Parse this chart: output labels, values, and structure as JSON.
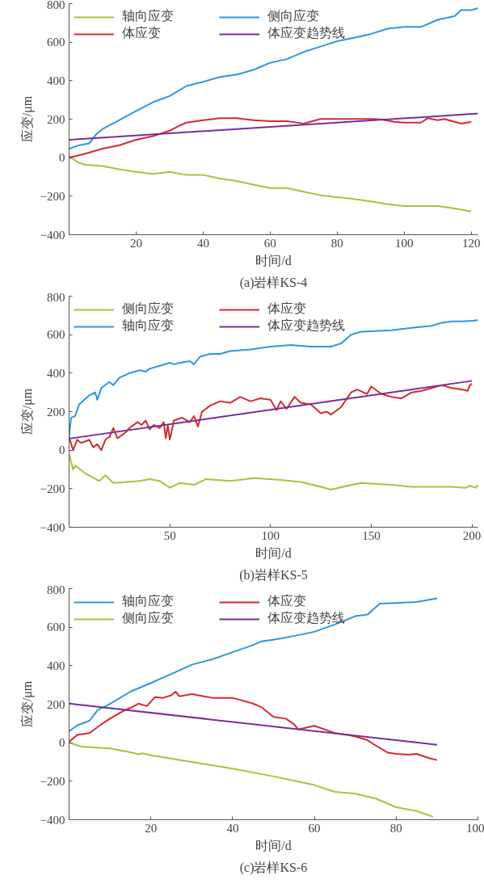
{
  "chart_data": [
    {
      "type": "line",
      "title": "(a)岩样KS-4",
      "xlabel": "时间/d",
      "ylabel": "应变/μm",
      "xlim": [
        0,
        122
      ],
      "ylim": [
        -400,
        800
      ],
      "xticks": [
        20,
        40,
        60,
        80,
        100,
        120
      ],
      "yticks": [
        -400,
        -200,
        0,
        200,
        400,
        600,
        800
      ],
      "grid": false,
      "legend": "top",
      "line_style": "solid",
      "marker": "none",
      "series": [
        {
          "name": "轴向应变",
          "color": "#a3c43c",
          "x": [
            0,
            3,
            5,
            10,
            15,
            20,
            25,
            30,
            35,
            40,
            45,
            50,
            55,
            60,
            65,
            70,
            75,
            80,
            85,
            90,
            95,
            100,
            105,
            110,
            115,
            120
          ],
          "values": [
            9,
            -28,
            -37,
            -43,
            -60,
            -74,
            -84,
            -74,
            -89,
            -89,
            -108,
            -121,
            -140,
            -158,
            -158,
            -177,
            -195,
            -205,
            -214,
            -227,
            -242,
            -251,
            -251,
            -251,
            -264,
            -279
          ]
        },
        {
          "name": "体应变",
          "color": "#d42a32",
          "x": [
            0,
            5,
            10,
            15,
            20,
            25,
            30,
            33,
            35,
            40,
            45,
            50,
            55,
            60,
            65,
            70,
            75,
            80,
            90,
            93,
            97,
            100,
            105,
            107,
            110,
            112,
            117,
            120
          ],
          "values": [
            0,
            22,
            47,
            65,
            93,
            112,
            140,
            167,
            182,
            195,
            205,
            205,
            195,
            190,
            190,
            177,
            201,
            201,
            201,
            199,
            186,
            182,
            182,
            205,
            195,
            201,
            177,
            186
          ]
        },
        {
          "name": "侧向应变",
          "color": "#2e96de",
          "x": [
            0,
            3,
            6,
            8,
            10,
            15,
            20,
            25,
            30,
            35,
            40,
            45,
            50,
            55,
            60,
            65,
            70,
            75,
            80,
            85,
            90,
            95,
            100,
            105,
            110,
            115,
            117,
            120,
            122
          ],
          "values": [
            46,
            65,
            74,
            120,
            149,
            195,
            242,
            288,
            320,
            372,
            394,
            419,
            432,
            456,
            493,
            512,
            549,
            577,
            605,
            623,
            642,
            670,
            679,
            679,
            716,
            735,
            766,
            766,
            777
          ]
        },
        {
          "name": "体应变趋势线",
          "color": "#7b2d96",
          "x": [
            0,
            122
          ],
          "values": [
            93,
            229
          ]
        }
      ]
    },
    {
      "type": "line",
      "title": "(b)岩样KS-5",
      "xlabel": "时间/d",
      "ylabel": "应变/μm",
      "xlim": [
        0,
        203
      ],
      "ylim": [
        -400,
        800
      ],
      "xticks": [
        50,
        100,
        150,
        200
      ],
      "yticks": [
        -400,
        -200,
        0,
        200,
        400,
        600,
        800
      ],
      "grid": false,
      "legend": "top",
      "line_style": "solid",
      "marker": "none",
      "series": [
        {
          "name": "侧向应变",
          "color": "#a3c43c",
          "x": [
            0,
            2,
            3,
            8,
            15,
            18,
            22,
            35,
            40,
            45,
            50,
            55,
            62,
            68,
            80,
            92,
            105,
            115,
            125,
            130,
            138,
            145,
            160,
            170,
            190,
            197,
            199,
            202,
            203
          ],
          "values": [
            -20,
            -100,
            -80,
            -120,
            -160,
            -130,
            -170,
            -160,
            -150,
            -160,
            -195,
            -170,
            -180,
            -150,
            -160,
            -145,
            -155,
            -165,
            -190,
            -205,
            -185,
            -170,
            -180,
            -190,
            -190,
            -195,
            -185,
            -195,
            -180
          ]
        },
        {
          "name": "轴向应变",
          "color": "#2e96de",
          "x": [
            0,
            1,
            3,
            5,
            10,
            13,
            14,
            16,
            20,
            22,
            25,
            30,
            35,
            38,
            40,
            45,
            50,
            52,
            55,
            60,
            62,
            65,
            70,
            75,
            80,
            90,
            100,
            110,
            120,
            130,
            135,
            140,
            145,
            160,
            170,
            180,
            185,
            190,
            195,
            200,
            203
          ],
          "values": [
            69,
            169,
            177,
            238,
            285,
            300,
            262,
            323,
            354,
            338,
            377,
            400,
            415,
            408,
            423,
            438,
            454,
            446,
            454,
            462,
            446,
            485,
            500,
            500,
            515,
            523,
            538,
            546,
            538,
            538,
            554,
            600,
            615,
            623,
            635,
            646,
            662,
            669,
            669,
            672,
            675
          ]
        },
        {
          "name": "体应变",
          "color": "#d42a32",
          "x": [
            0,
            2,
            4,
            6,
            8,
            10,
            12,
            14,
            16,
            18,
            20,
            22,
            24,
            28,
            30,
            34,
            36,
            38,
            40,
            42,
            45,
            47,
            48,
            49,
            50,
            52,
            56,
            60,
            62,
            64,
            66,
            70,
            75,
            80,
            85,
            90,
            95,
            100,
            103,
            105,
            108,
            112,
            115,
            120,
            125,
            128,
            130,
            135,
            140,
            143,
            148,
            150,
            155,
            160,
            165,
            170,
            175,
            180,
            185,
            190,
            195,
            198,
            199,
            200
          ],
          "values": [
            69,
            0,
            54,
            38,
            46,
            54,
            15,
            31,
            0,
            54,
            69,
            115,
            62,
            92,
            115,
            146,
            131,
            154,
            108,
            131,
            115,
            146,
            62,
            131,
            54,
            154,
            169,
            146,
            177,
            123,
            200,
            231,
            254,
            246,
            277,
            254,
            269,
            262,
            208,
            254,
            215,
            277,
            246,
            238,
            192,
            200,
            185,
            223,
            300,
            315,
            292,
            331,
            292,
            277,
            269,
            300,
            308,
            323,
            338,
            323,
            315,
            308,
            338,
            346
          ]
        },
        {
          "name": "体应变趋势线",
          "color": "#7b2d96",
          "x": [
            0,
            200
          ],
          "values": [
            60,
            360
          ]
        }
      ]
    },
    {
      "type": "line",
      "title": "(c)岩样KS-6",
      "xlabel": "时间/d",
      "ylabel": "应变/μm",
      "xlim": [
        0,
        100
      ],
      "ylim": [
        -400,
        800
      ],
      "xticks": [
        20,
        40,
        60,
        80,
        100
      ],
      "yticks": [
        -400,
        -200,
        0,
        200,
        400,
        600,
        800
      ],
      "grid": false,
      "legend": "top",
      "line_style": "solid",
      "marker": "none",
      "series": [
        {
          "name": "轴向应变",
          "color": "#2e96de",
          "x": [
            0,
            2,
            5,
            7,
            10,
            15,
            20,
            25,
            28,
            30,
            35,
            40,
            45,
            47,
            50,
            55,
            60,
            65,
            70,
            73,
            76,
            80,
            85,
            90
          ],
          "values": [
            60,
            90,
            114,
            170,
            202,
            265,
            310,
            357,
            385,
            405,
            433,
            470,
            507,
            526,
            535,
            554,
            576,
            614,
            657,
            666,
            722,
            726,
            731,
            750
          ]
        },
        {
          "name": "侧向应变",
          "color": "#a3c43c",
          "x": [
            0,
            3,
            10,
            15,
            17,
            18,
            20,
            30,
            40,
            50,
            60,
            65,
            70,
            75,
            80,
            85,
            89
          ],
          "values": [
            0,
            -20,
            -30,
            -50,
            -60,
            -55,
            -65,
            -100,
            -135,
            -175,
            -220,
            -255,
            -265,
            -290,
            -335,
            -355,
            -385
          ]
        },
        {
          "name": "体应变",
          "color": "#d42a32",
          "x": [
            0,
            2,
            5,
            8,
            10,
            13,
            15,
            17,
            19,
            21,
            23,
            25,
            26,
            27,
            30,
            35,
            40,
            45,
            47,
            50,
            53,
            55,
            56,
            58,
            60,
            63,
            65,
            68,
            70,
            73,
            75,
            78,
            80,
            83,
            85,
            88,
            90
          ],
          "values": [
            4,
            41,
            50,
            97,
            125,
            162,
            181,
            203,
            190,
            237,
            233,
            246,
            265,
            241,
            252,
            233,
            233,
            203,
            185,
            134,
            125,
            97,
            69,
            78,
            88,
            65,
            50,
            41,
            32,
            13,
            -15,
            -52,
            -58,
            -62,
            -58,
            -80,
            -90
          ]
        },
        {
          "name": "体应变趋势线",
          "color": "#7b2d96",
          "x": [
            0,
            90
          ],
          "values": [
            203,
            -11
          ]
        }
      ]
    }
  ]
}
